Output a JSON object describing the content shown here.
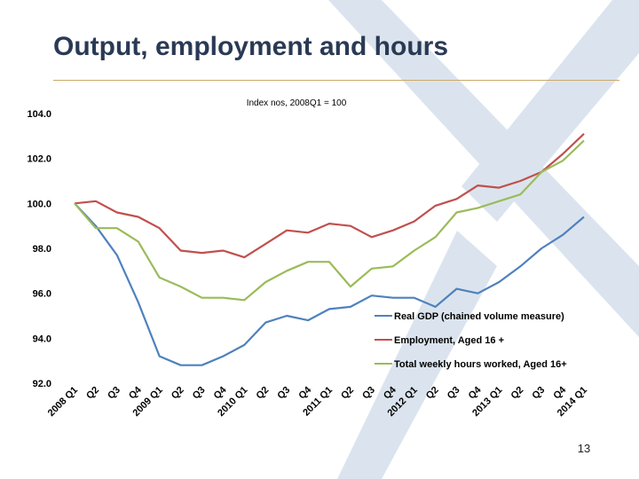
{
  "slide": {
    "title": "Output, employment and hours",
    "page_number": "13"
  },
  "chart_data": {
    "type": "line",
    "title": "Index nos, 2008Q1 = 100",
    "xlabel": "",
    "ylabel": "",
    "ylim": [
      92,
      104
    ],
    "yticks": [
      "92.0",
      "94.0",
      "96.0",
      "98.0",
      "100.0",
      "102.0",
      "104.0"
    ],
    "grid": false,
    "legend_position": "bottom-right",
    "categories": [
      "2008 Q1",
      "Q2",
      "Q3",
      "Q4",
      "2009 Q1",
      "Q2",
      "Q3",
      "Q4",
      "2010 Q1",
      "Q2",
      "Q3",
      "Q4",
      "2011 Q1",
      "Q2",
      "Q3",
      "Q4",
      "2012 Q1",
      "Q2",
      "Q3",
      "Q4",
      "2013 Q1",
      "Q2",
      "Q3",
      "Q4",
      "2014 Q1"
    ],
    "series": [
      {
        "name": "Real GDP (chained volume measure)",
        "color": "#4f81bd",
        "values": [
          100.0,
          99.0,
          97.7,
          95.6,
          93.2,
          92.8,
          92.8,
          93.2,
          93.7,
          94.7,
          95.0,
          94.8,
          95.3,
          95.4,
          95.9,
          95.8,
          95.8,
          95.4,
          96.2,
          96.0,
          96.5,
          97.2,
          98.0,
          98.6,
          99.4
        ]
      },
      {
        "name": "Employment, Aged 16 +",
        "color": "#c0504d",
        "values": [
          100.0,
          100.1,
          99.6,
          99.4,
          98.9,
          97.9,
          97.8,
          97.9,
          97.6,
          98.2,
          98.8,
          98.7,
          99.1,
          99.0,
          98.5,
          98.8,
          99.2,
          99.9,
          100.2,
          100.8,
          100.7,
          101.0,
          101.4,
          102.2,
          103.1
        ]
      },
      {
        "name": "Total weekly hours worked, Aged 16+",
        "color": "#9bbb59",
        "values": [
          100.0,
          98.9,
          98.9,
          98.3,
          96.7,
          96.3,
          95.8,
          95.8,
          95.7,
          96.5,
          97.0,
          97.4,
          97.4,
          96.3,
          97.1,
          97.2,
          97.9,
          98.5,
          99.6,
          99.8,
          100.1,
          100.4,
          101.4,
          101.9,
          102.8
        ]
      }
    ]
  }
}
